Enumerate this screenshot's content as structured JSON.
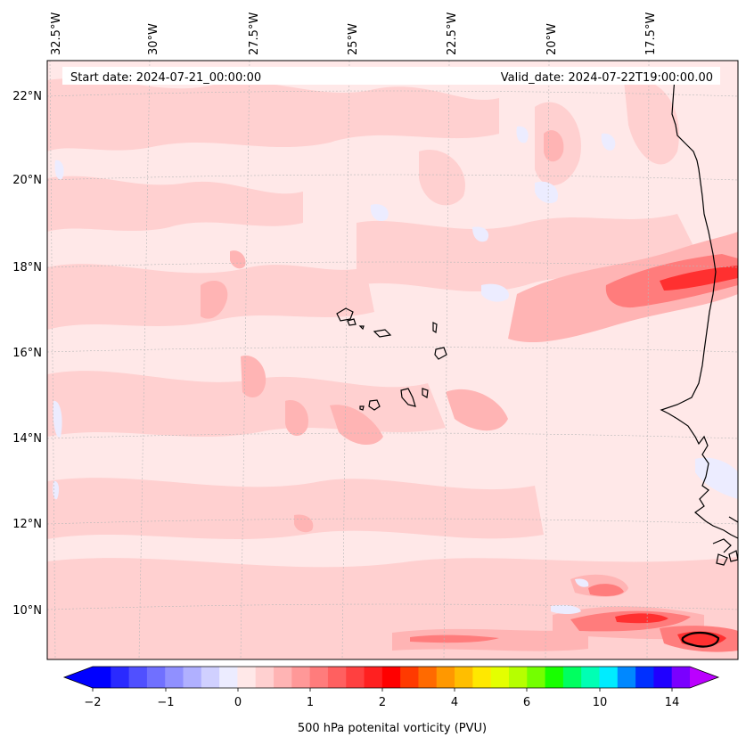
{
  "header": {
    "start_date": "Start date: 2024-07-21_00:00:00",
    "valid_date": "Valid_date: 2024-07-22T19:00:00.00"
  },
  "map": {
    "lon_labels": [
      "32.5°W",
      "30°W",
      "27.5°W",
      "25°W",
      "22.5°W",
      "20°W",
      "17.5°W"
    ],
    "lat_labels": [
      "22°N",
      "20°N",
      "18°N",
      "16°N",
      "14°N",
      "12°N",
      "10°N"
    ],
    "gridlines": true,
    "coastline_color": "#000000"
  },
  "colorbar": {
    "label": "500 hPa potenital vorticity (PVU)",
    "tick_labels": [
      "−2",
      "−1",
      "0",
      "1",
      "2",
      "4",
      "6",
      "10",
      "14"
    ],
    "colors": [
      "#0000ff",
      "#2a2aff",
      "#5050ff",
      "#7070ff",
      "#9090ff",
      "#b0b0ff",
      "#d0d0ff",
      "#ececff",
      "#ffe8e8",
      "#ffd0d0",
      "#ffb4b4",
      "#ff9898",
      "#ff7c7c",
      "#ff6060",
      "#ff4040",
      "#ff2020",
      "#ff0000",
      "#ff3a00",
      "#ff6a00",
      "#ff9800",
      "#ffbe00",
      "#ffe800",
      "#e4ff00",
      "#b6ff00",
      "#74ff00",
      "#18ff00",
      "#00ff60",
      "#00ffb4",
      "#00ecff",
      "#0088ff",
      "#0030ff",
      "#2000ff",
      "#7a00ff"
    ],
    "extend_low_color": "#0000ff",
    "extend_high_color": "#bb00ff"
  },
  "legend_levels": {
    "background": "#ffe8e8",
    "light": "#ffd0d0",
    "medium": "#ffb4b4",
    "strong": "#ff7c7c",
    "intense": "#ff3030",
    "negative": "#ececff"
  }
}
